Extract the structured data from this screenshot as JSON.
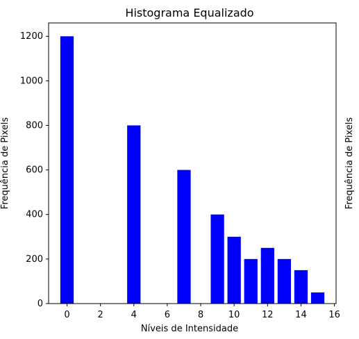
{
  "chart_data": {
    "type": "bar",
    "title": "Histograma Equalizado",
    "xlabel": "Níveis de Intensidade",
    "ylabel": "Frequência de Pixels",
    "ylabel_right": "Frequência de Pixels",
    "x": [
      0,
      4,
      7,
      9,
      10,
      11,
      12,
      13,
      14,
      15
    ],
    "values": [
      1200,
      800,
      600,
      400,
      300,
      200,
      250,
      200,
      150,
      50
    ],
    "bar_color": "#0000ff",
    "xlim": [
      -1.1,
      16.1
    ],
    "ylim": [
      0,
      1260
    ],
    "xticks": [
      0,
      2,
      4,
      6,
      8,
      10,
      12,
      14,
      16
    ],
    "yticks": [
      0,
      200,
      400,
      600,
      800,
      1000,
      1200
    ],
    "grid": false,
    "legend": false
  }
}
